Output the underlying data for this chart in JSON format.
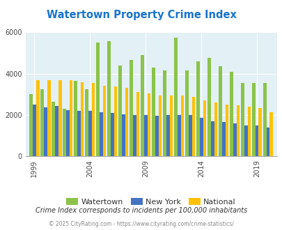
{
  "title": "Watertown Property Crime Index",
  "title_color": "#1874CD",
  "subtitle": "Crime Index corresponds to incidents per 100,000 inhabitants",
  "footer": "© 2025 CityRating.com - https://www.cityrating.com/crime-statistics/",
  "years": [
    1999,
    2000,
    2001,
    2002,
    2003,
    2004,
    2005,
    2006,
    2007,
    2008,
    2009,
    2010,
    2011,
    2012,
    2013,
    2014,
    2015,
    2016,
    2017,
    2018,
    2019,
    2020
  ],
  "watertown": [
    3000,
    3250,
    2650,
    2300,
    3650,
    3250,
    5500,
    5580,
    4400,
    4650,
    4900,
    4300,
    4150,
    5750,
    4150,
    4600,
    4750,
    4350,
    4100,
    3550,
    3550,
    3550
  ],
  "new_york": [
    2500,
    2370,
    2450,
    2250,
    2200,
    2200,
    2150,
    2100,
    2050,
    2000,
    2000,
    1980,
    2000,
    2000,
    2000,
    1850,
    1700,
    1650,
    1600,
    1480,
    1480,
    1380
  ],
  "national": [
    3680,
    3680,
    3700,
    3680,
    3580,
    3540,
    3430,
    3380,
    3300,
    3100,
    3050,
    2950,
    2930,
    2930,
    2870,
    2720,
    2620,
    2510,
    2480,
    2420,
    2350,
    2120
  ],
  "watertown_color": "#8BC34A",
  "newyork_color": "#4472C4",
  "national_color": "#FFC107",
  "plot_bg": "#E3F0F5",
  "ylim": [
    0,
    6000
  ],
  "yticks": [
    0,
    2000,
    4000,
    6000
  ],
  "xtick_labels": [
    "1999",
    "2004",
    "2009",
    "2014",
    "2019"
  ],
  "xtick_positions": [
    1999,
    2004,
    2009,
    2014,
    2019
  ]
}
